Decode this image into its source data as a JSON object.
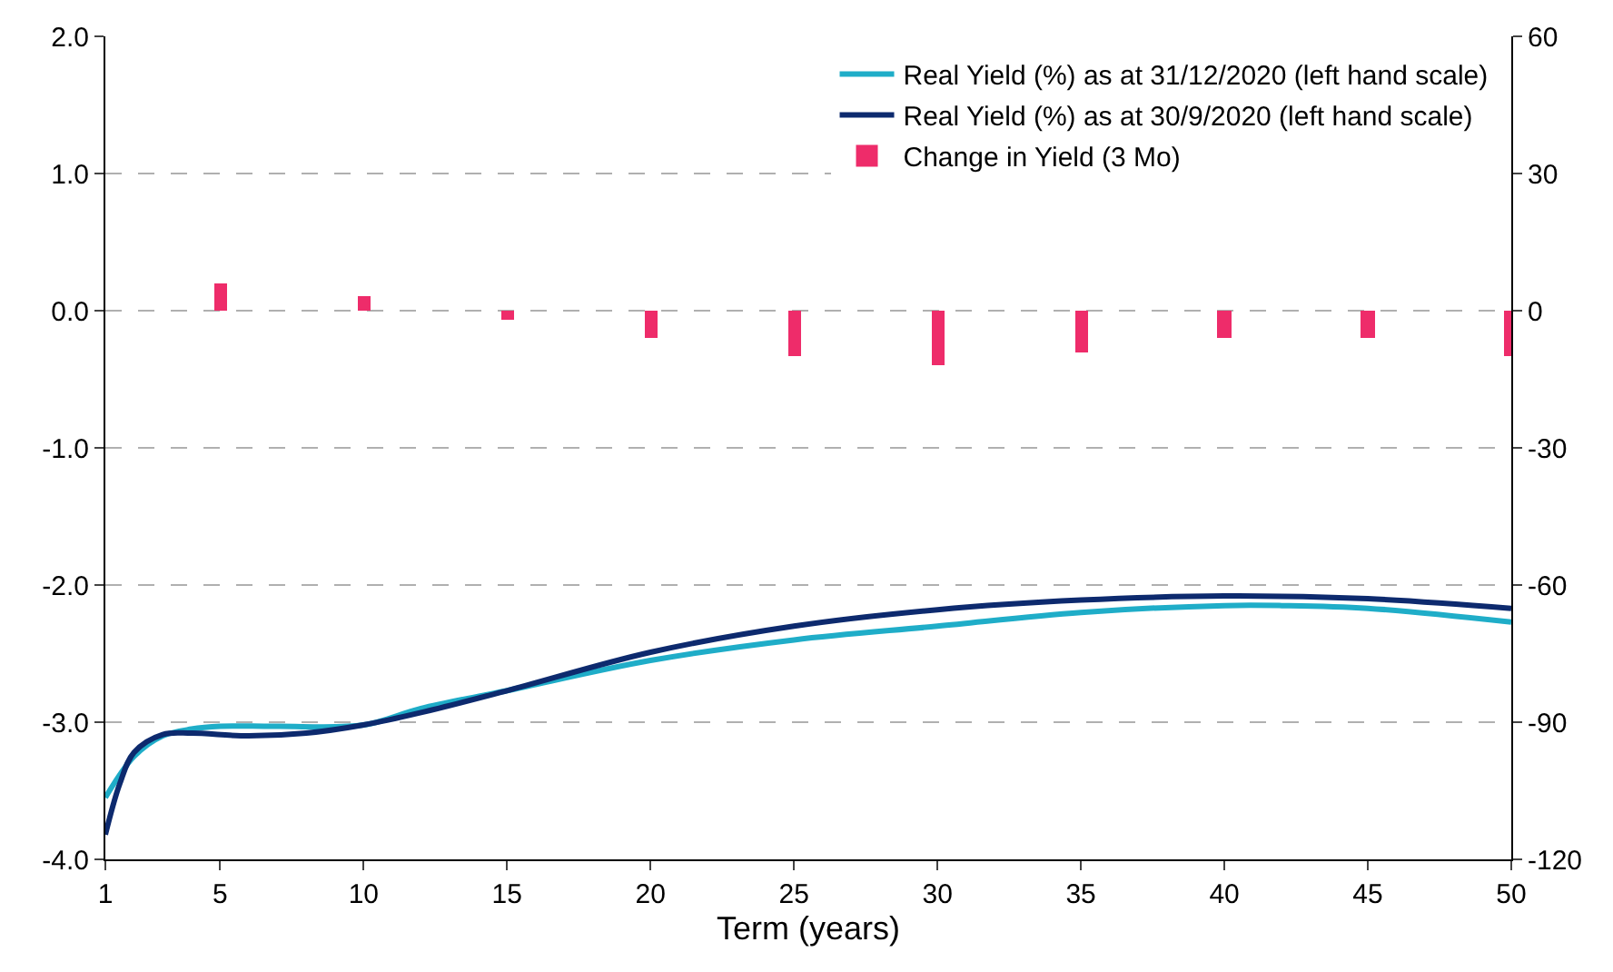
{
  "chart_data": {
    "type": "line",
    "xlabel": "Term (years)",
    "xlim": [
      1,
      50
    ],
    "xticks": [
      1,
      5,
      10,
      15,
      20,
      25,
      30,
      35,
      40,
      45,
      50
    ],
    "ylim": [
      -4,
      2
    ],
    "yticks": [
      {
        "value": -4,
        "label": "-4.0"
      },
      {
        "value": -3,
        "label": "-3.0"
      },
      {
        "value": -2,
        "label": "-2.0"
      },
      {
        "value": -1,
        "label": "-1.0"
      },
      {
        "value": 0,
        "label": "0.0"
      },
      {
        "value": 1,
        "label": "1.0"
      },
      {
        "value": 2,
        "label": "2.0"
      }
    ],
    "y2lim": [
      -120,
      60
    ],
    "y2ticks": [
      -120,
      -90,
      -60,
      -30,
      0,
      30,
      60
    ],
    "grid": "y",
    "legend": "top right",
    "series": [
      {
        "name": "Real Yield (%) as at 31/12/2020 (left hand scale)",
        "color": "#1fadc8",
        "x": [
          1,
          2,
          3,
          4,
          5,
          7,
          10,
          12,
          15,
          20,
          25,
          30,
          35,
          40,
          42,
          45,
          50
        ],
        "values": [
          -3.55,
          -3.25,
          -3.1,
          -3.05,
          -3.03,
          -3.03,
          -3.02,
          -2.9,
          -2.77,
          -2.55,
          -2.4,
          -2.3,
          -2.2,
          -2.15,
          -2.15,
          -2.17,
          -2.27
        ]
      },
      {
        "name": "Real Yield (%) as at 30/9/2020 (left hand scale)",
        "color": "#0d2a6e",
        "x": [
          1,
          1.5,
          2,
          3,
          4,
          6,
          8,
          10,
          12,
          15,
          20,
          25,
          30,
          35,
          40,
          45,
          50
        ],
        "values": [
          -3.82,
          -3.45,
          -3.22,
          -3.09,
          -3.08,
          -3.1,
          -3.08,
          -3.02,
          -2.93,
          -2.77,
          -2.49,
          -2.3,
          -2.18,
          -2.11,
          -2.08,
          -2.1,
          -2.17
        ]
      },
      {
        "name": "Change in Yield (3 Mo)",
        "type": "bar",
        "axis": "y2",
        "color": "#ee2c6a",
        "x": [
          5,
          10,
          15,
          20,
          25,
          30,
          35,
          40,
          45,
          50
        ],
        "values": [
          6,
          3,
          -2,
          -6,
          -10,
          -12,
          -9,
          -6,
          -6,
          -10
        ]
      }
    ]
  }
}
